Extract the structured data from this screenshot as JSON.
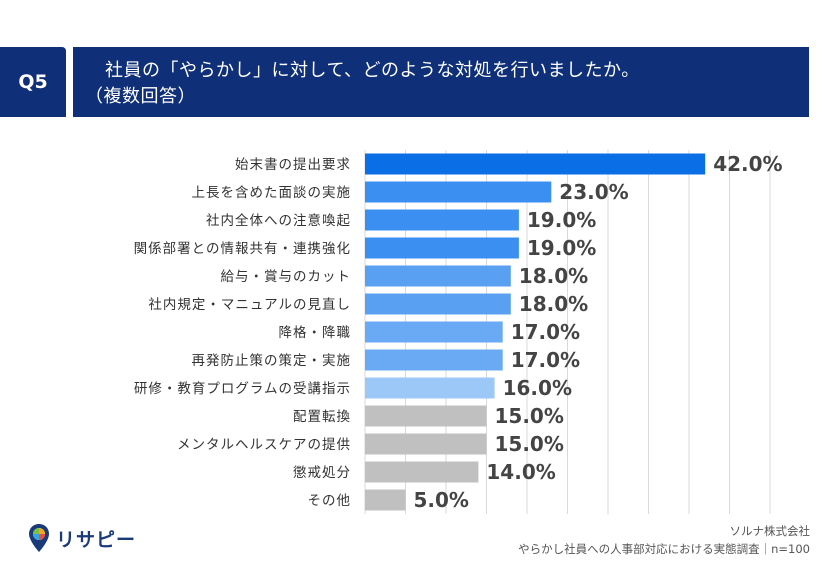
{
  "question": {
    "badge": "Q5",
    "line1": "社員の「やらかし」に対して、どのような対処を行いましたか。",
    "line2": "（複数回答）"
  },
  "chart_data": {
    "type": "bar",
    "orientation": "horizontal",
    "categories": [
      "始末書の提出要求",
      "上長を含めた面談の実施",
      "社内全体への注意喚起",
      "関係部署との情報共有・連携強化",
      "給与・賞与のカット",
      "社内規定・マニュアルの見直し",
      "降格・降職",
      "再発防止策の策定・実施",
      "研修・教育プログラムの受講指示",
      "配置転換",
      "メンタルヘルスケアの提供",
      "懲戒処分",
      "その他"
    ],
    "values": [
      42.0,
      23.0,
      19.0,
      19.0,
      18.0,
      18.0,
      17.0,
      17.0,
      16.0,
      15.0,
      15.0,
      14.0,
      5.0
    ],
    "value_labels": [
      "42.0%",
      "23.0%",
      "19.0%",
      "19.0%",
      "18.0%",
      "18.0%",
      "17.0%",
      "17.0%",
      "16.0%",
      "15.0%",
      "15.0%",
      "14.0%",
      "5.0%"
    ],
    "bar_colors": [
      "#0a6fe6",
      "#3a8ff0",
      "#3a8ff0",
      "#3a8ff0",
      "#5aa0f2",
      "#5aa0f2",
      "#6aaaf4",
      "#6aaaf4",
      "#9cc8f8",
      "#c0c0c0",
      "#c0c0c0",
      "#c0c0c0",
      "#c0c0c0"
    ],
    "xlim": [
      0,
      50
    ],
    "grid": true,
    "title": "",
    "xlabel": "",
    "ylabel": ""
  },
  "footer": {
    "source_line1": "ソルナ株式会社",
    "source_line2": "やらかし社員への人事部対応における実態調査｜n=100",
    "logo_text": "リサピー"
  },
  "colors": {
    "header_bg": "#0f2f78",
    "grid": "#d9d9d9"
  }
}
